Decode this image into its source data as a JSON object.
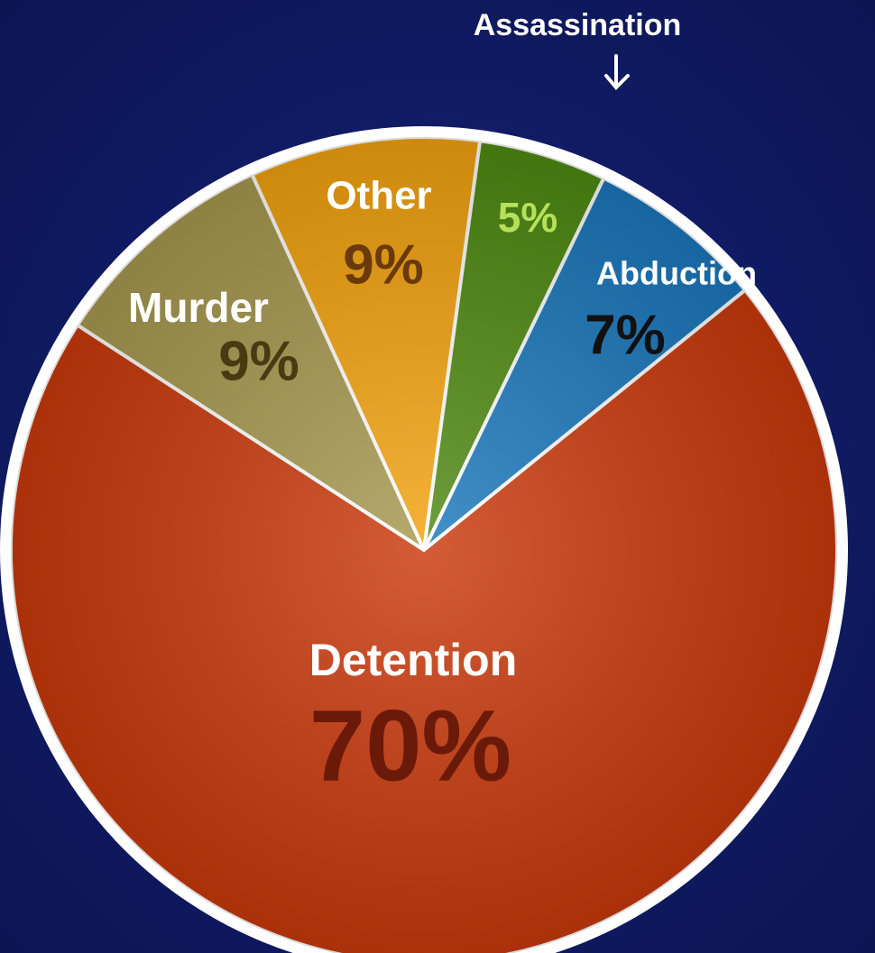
{
  "chart_data": {
    "type": "pie",
    "labels": [
      "Other",
      "Assassination",
      "Abduction",
      "Detention",
      "Murder"
    ],
    "values": [
      9,
      5,
      7,
      70,
      9
    ],
    "value_labels": [
      "9%",
      "5%",
      "7%",
      "70%",
      "9%"
    ],
    "colors": [
      "#f2a20e",
      "#4f8a12",
      "#1b78bd",
      "#c9390b",
      "#a6984f"
    ]
  }
}
